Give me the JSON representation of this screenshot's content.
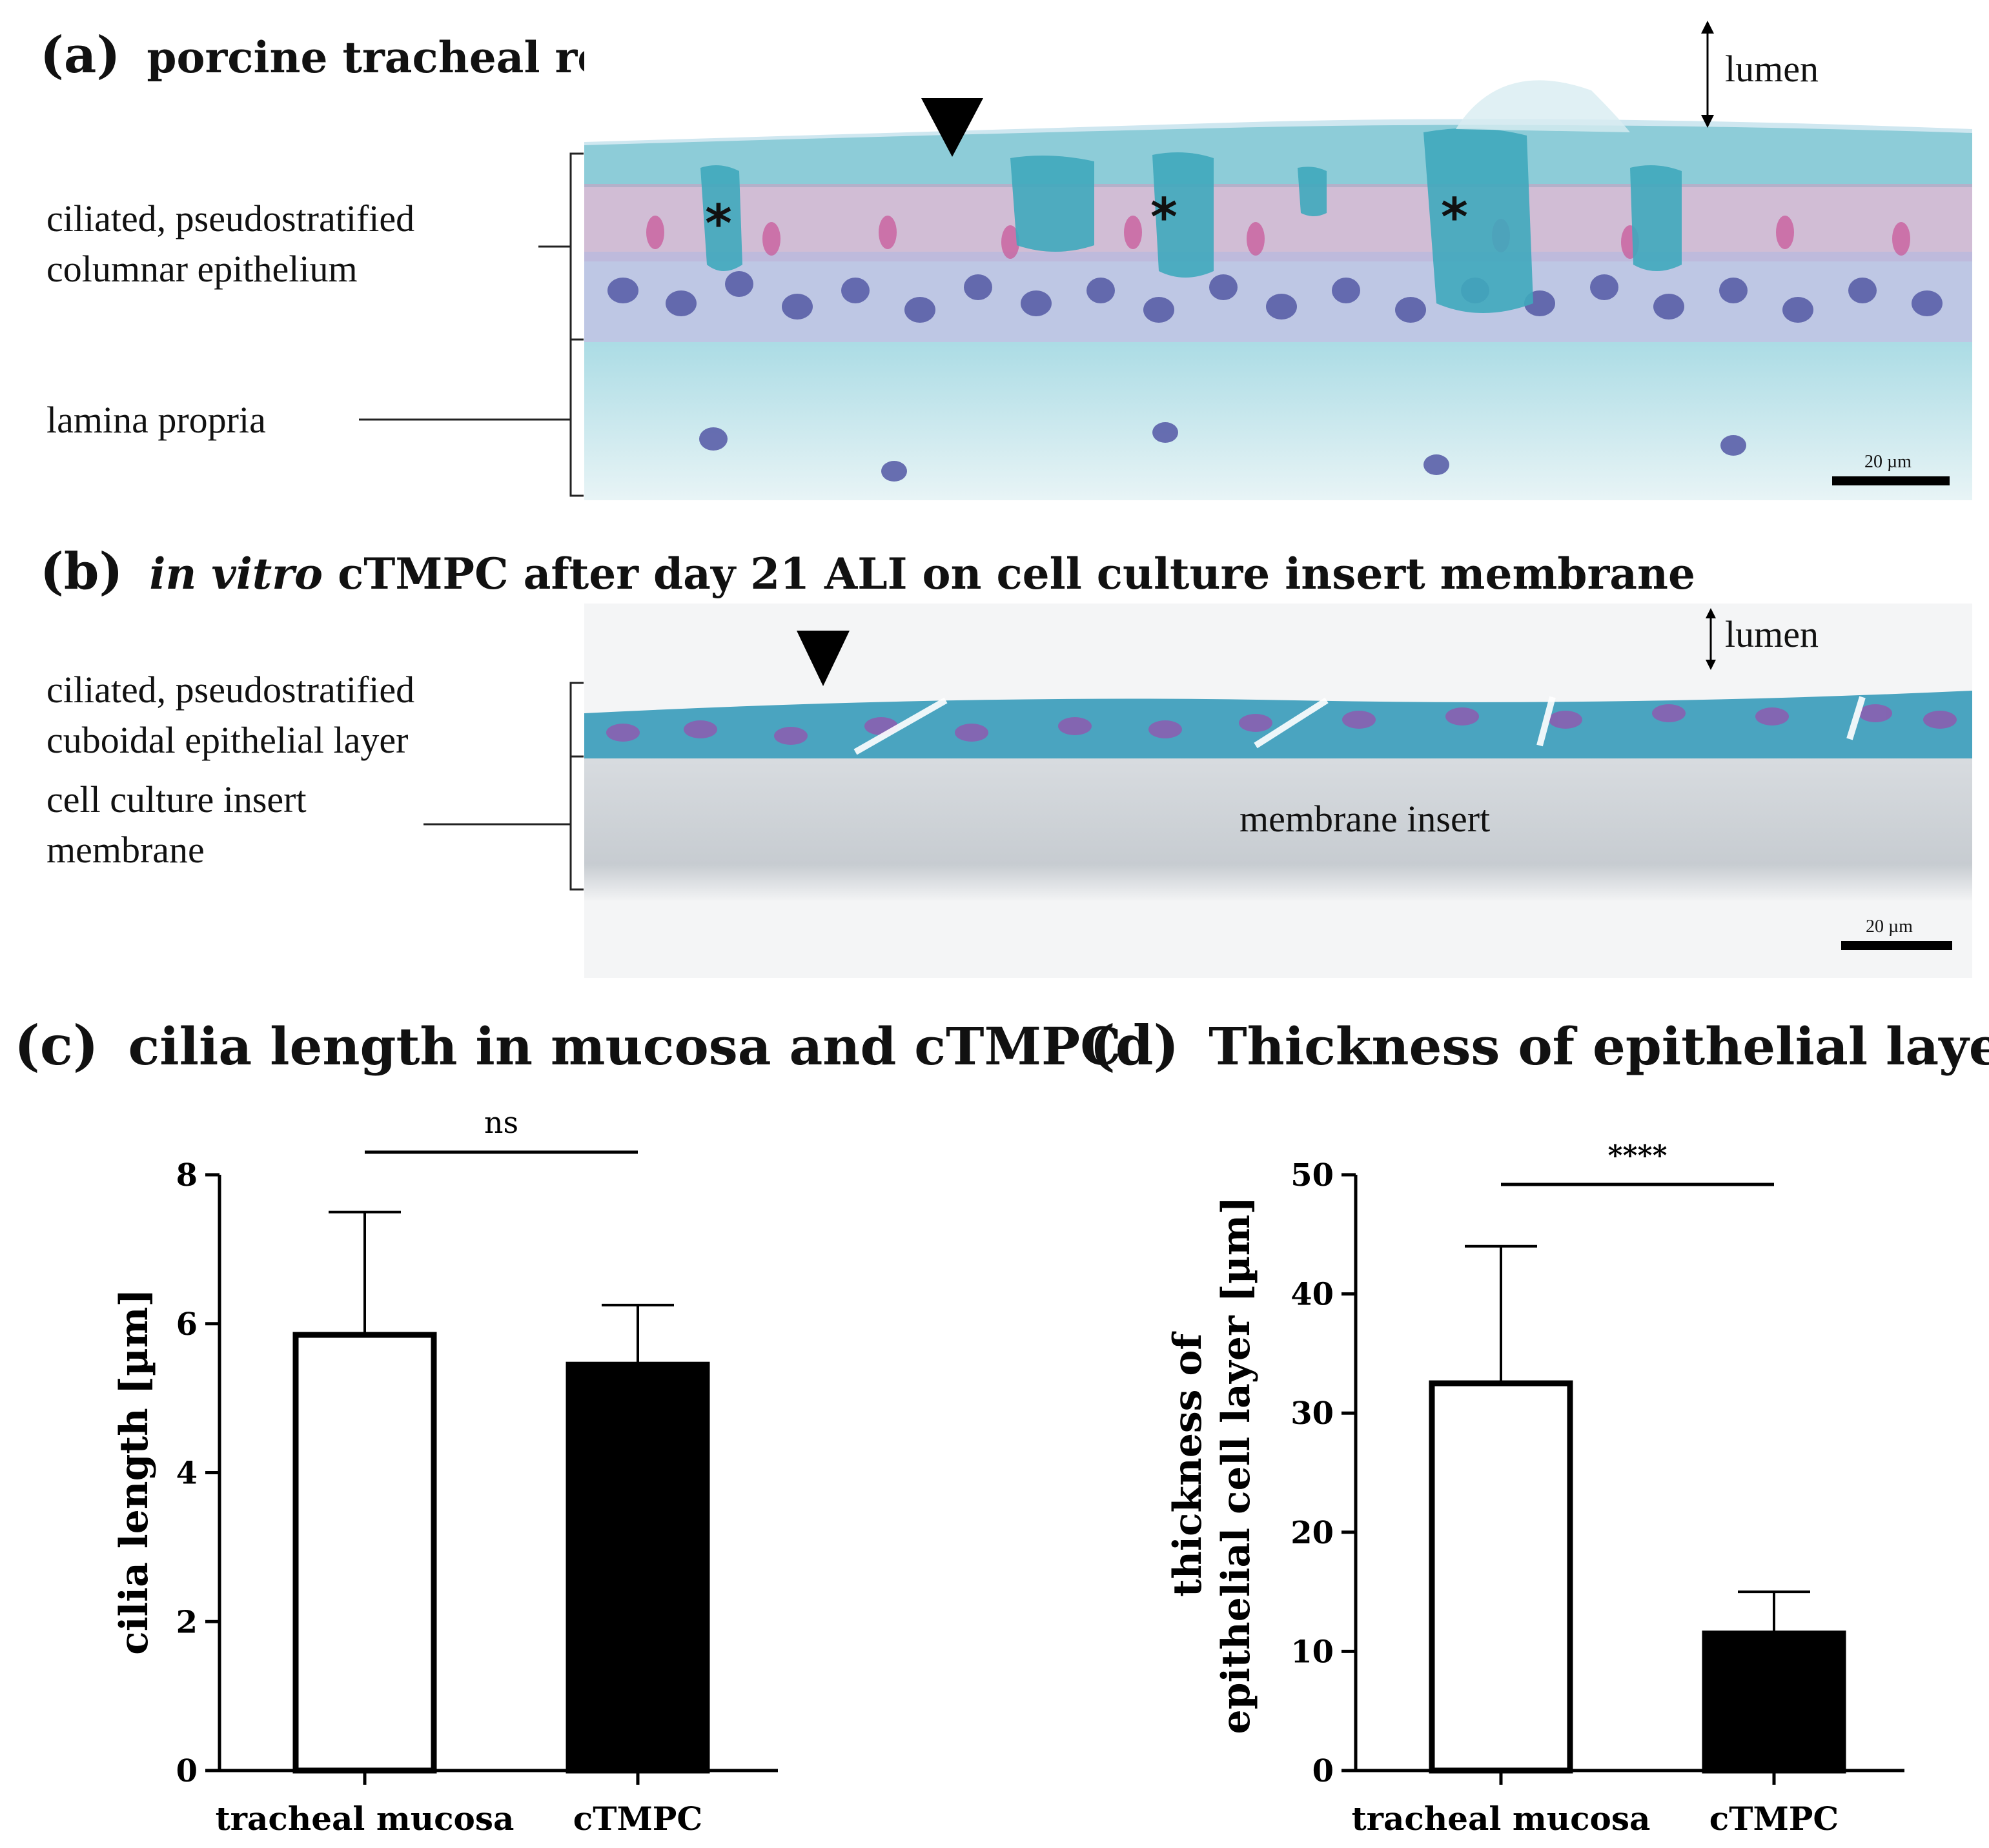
{
  "panel_a": {
    "letter": "(a)",
    "title": "porcine tracheal respiratory mucosa",
    "label_epithelium_1": "ciliated, pseudostratified",
    "label_epithelium_2": "columnar epithelium",
    "label_lamina": "lamina propria",
    "lumen": "lumen",
    "asterisk": "*",
    "scalebar": "20 µm"
  },
  "panel_b": {
    "letter": "(b)",
    "title_italic": "in vitro",
    "title_rest": "cTMPC after day 21 ALI on cell culture insert membrane",
    "label_epithelium_1": "ciliated, pseudostratified",
    "label_epithelium_2": "cuboidal epithelial layer",
    "label_membrane_1": "cell culture insert",
    "label_membrane_2": "membrane",
    "membrane_insert": "membrane insert",
    "lumen": "lumen",
    "scalebar": "20 µm"
  },
  "colors": {
    "mucus_blue": "#5fb8c8",
    "nucleus_purple": "#5a5fa8",
    "cilia_pink": "#c85a9a",
    "bar_open": "#ffffff",
    "bar_filled": "#000000"
  },
  "chart_data": [
    {
      "type": "bar",
      "panel_letter": "(c)",
      "title": "cilia length in mucosa and cTMPC",
      "categories": [
        "tracheal mucosa",
        "cTMPC"
      ],
      "values": [
        5.85,
        5.45
      ],
      "errors_upper": [
        7.5,
        6.25
      ],
      "fills": [
        "open",
        "filled"
      ],
      "ylabel": "cilia length [µm]",
      "ylim": [
        0,
        8
      ],
      "yticks": [
        "0",
        "2",
        "4",
        "6",
        "8"
      ],
      "significance": "ns"
    },
    {
      "type": "bar",
      "panel_letter": "(d)",
      "title": "Thickness of epithelial layer",
      "categories": [
        "tracheal mucosa",
        "cTMPC"
      ],
      "values": [
        32.5,
        11.5
      ],
      "errors_upper": [
        44,
        15
      ],
      "fills": [
        "open",
        "filled"
      ],
      "ylabel_line1": "thickness of",
      "ylabel_line2": "epithelial cell layer [µm]",
      "ylim": [
        0,
        50
      ],
      "yticks": [
        "0",
        "10",
        "20",
        "30",
        "40",
        "50"
      ],
      "significance": "****"
    }
  ]
}
